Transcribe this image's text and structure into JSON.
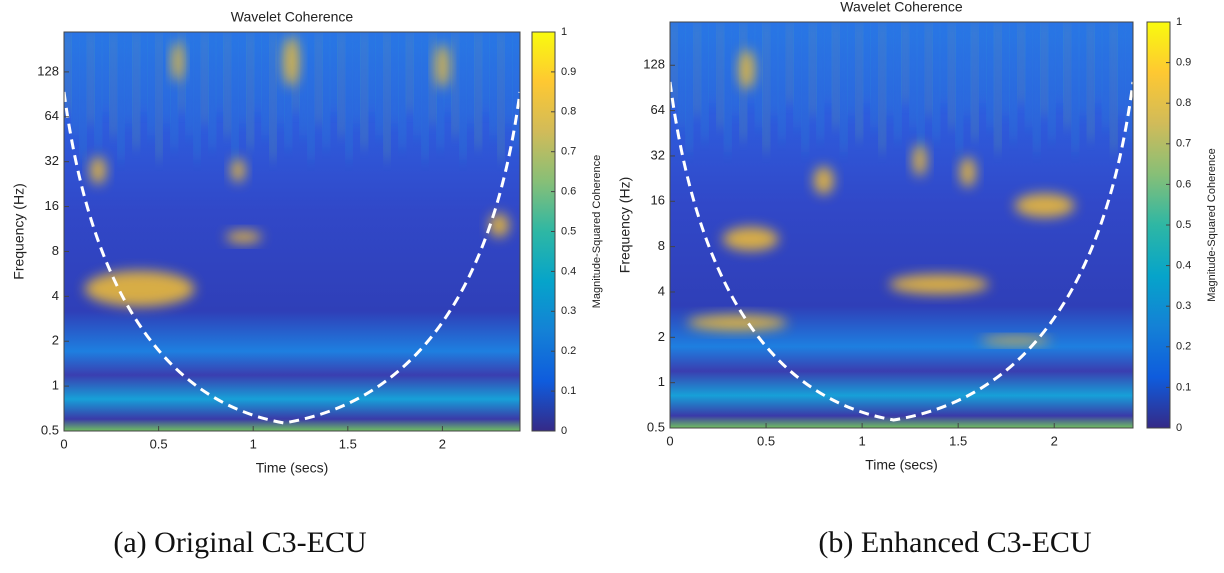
{
  "chart_data": [
    {
      "type": "heatmap",
      "title": "Wavelet Coherence",
      "xlabel": "Time (secs)",
      "ylabel": "Frequency (Hz)",
      "xlim": [
        0,
        2.41
      ],
      "xticks": [
        0,
        0.5,
        1,
        1.5,
        2
      ],
      "ylim": [
        0.5,
        237
      ],
      "yticks": [
        0.5,
        1,
        2,
        4,
        8,
        16,
        32,
        64,
        128
      ],
      "ylog": true,
      "colorbar": {
        "label": "Magnitude-Squared Coherence",
        "lim": [
          0,
          1
        ],
        "ticks": [
          0,
          0.1,
          0.2,
          0.3,
          0.4,
          0.5,
          0.6,
          0.7,
          0.8,
          0.9,
          1
        ]
      },
      "colormap": [
        "#352a87",
        "#0f5cdd",
        "#1481d6",
        "#06a4ca",
        "#2eb7a4",
        "#87bf77",
        "#d1bb59",
        "#fec832",
        "#f9fb0e"
      ],
      "caption": "(a) Original C3-ECU"
    },
    {
      "type": "heatmap",
      "title": "Wavelet Coherence",
      "xlabel": "Time (secs)",
      "ylabel": "Frequency (Hz)",
      "xlim": [
        0,
        2.41
      ],
      "xticks": [
        0,
        0.5,
        1,
        1.5,
        2
      ],
      "ylim": [
        0.5,
        248
      ],
      "yticks": [
        0.5,
        1,
        2,
        4,
        8,
        16,
        32,
        64,
        128
      ],
      "ylog": true,
      "colorbar": {
        "label": "Magnitude-Squared Coherence",
        "lim": [
          0,
          1
        ],
        "ticks": [
          0,
          0.1,
          0.2,
          0.3,
          0.4,
          0.5,
          0.6,
          0.7,
          0.8,
          0.9,
          1
        ]
      },
      "colormap": [
        "#352a87",
        "#0f5cdd",
        "#1481d6",
        "#06a4ca",
        "#2eb7a4",
        "#87bf77",
        "#d1bb59",
        "#fec832",
        "#f9fb0e"
      ],
      "caption": "(b) Enhanced C3-ECU"
    }
  ]
}
